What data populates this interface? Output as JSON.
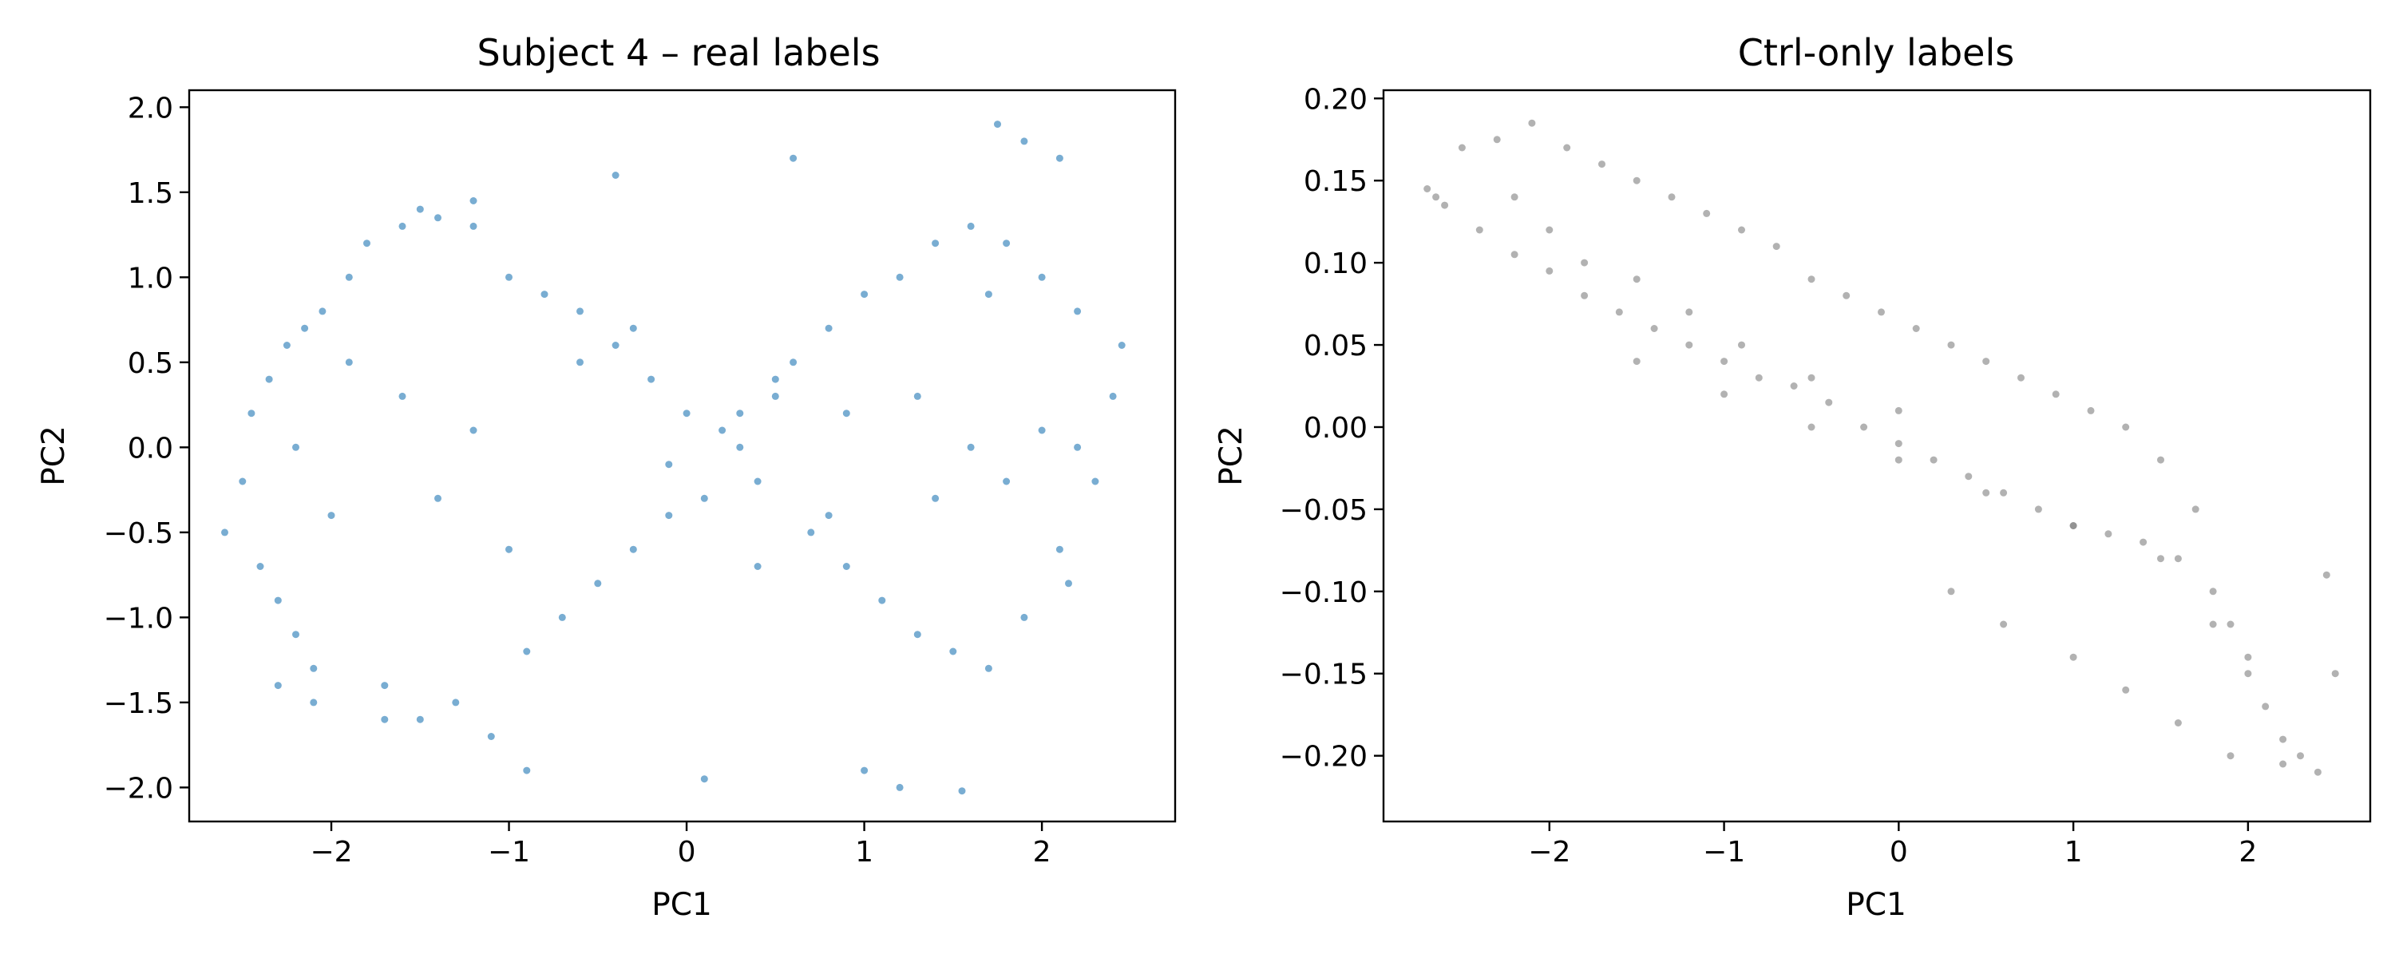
{
  "chart_data": [
    {
      "type": "scatter",
      "title": "Subject 4 – real labels",
      "xlabel": "PC1",
      "ylabel": "PC2",
      "xlim": [
        -2.8,
        2.75
      ],
      "ylim": [
        -2.2,
        2.1
      ],
      "xticks": [
        -2,
        -1,
        0,
        1,
        2
      ],
      "yticks": [
        -2.0,
        -1.5,
        -1.0,
        -0.5,
        0.0,
        0.5,
        1.0,
        1.5,
        2.0
      ],
      "xtick_labels": [
        "−2",
        "−1",
        "0",
        "1",
        "2"
      ],
      "ytick_labels": [
        "−2.0",
        "−1.5",
        "−1.0",
        "−0.5",
        "0.0",
        "0.5",
        "1.0",
        "1.5",
        "2.0"
      ],
      "grid": false,
      "marker_color": "#1f77b4",
      "marker_opacity": 0.6,
      "series": [
        {
          "x": [
            -2.6,
            -2.5,
            -2.45,
            -2.4,
            -2.35,
            -2.3,
            -2.25,
            -2.2,
            -2.15,
            -2.1,
            -2.05,
            -2.0,
            -1.9,
            -1.8,
            -1.7,
            -1.6,
            -1.5,
            -1.4,
            -1.3,
            -1.2,
            -1.1,
            -1.0,
            -0.9,
            -0.8,
            -0.7,
            -0.6,
            -0.5,
            -0.4,
            -0.3,
            -0.2,
            -0.1,
            0.0,
            0.1,
            0.2,
            0.3,
            0.4,
            0.5,
            0.6,
            0.7,
            0.8,
            0.9,
            1.0,
            1.1,
            1.2,
            1.3,
            1.4,
            1.5,
            1.6,
            1.7,
            1.8,
            1.9,
            2.0,
            2.1,
            2.2,
            2.3,
            2.4,
            2.45,
            -2.3,
            -2.1,
            -1.7,
            -1.5,
            -1.2,
            -0.9,
            -0.4,
            0.1,
            0.6,
            1.0,
            1.2,
            1.55,
            1.75,
            1.9,
            2.1,
            -1.6,
            -1.4,
            -1.2,
            -0.6,
            -0.1,
            0.3,
            0.5,
            0.8,
            1.3,
            1.6,
            1.8,
            2.0,
            2.2,
            -2.2,
            -1.9,
            -1.0,
            -0.3,
            0.4,
            0.9,
            1.4,
            1.7,
            2.15
          ],
          "y": [
            -0.5,
            -0.2,
            0.2,
            -0.7,
            0.4,
            -0.9,
            0.6,
            -1.1,
            0.7,
            -1.3,
            0.8,
            -0.4,
            1.0,
            1.2,
            -1.4,
            1.3,
            -1.6,
            1.35,
            -1.5,
            1.3,
            -1.7,
            1.0,
            -1.2,
            0.9,
            -1.0,
            0.8,
            -0.8,
            0.6,
            -0.6,
            0.4,
            -0.4,
            0.2,
            -0.3,
            0.1,
            0.0,
            -0.2,
            0.3,
            0.5,
            -0.5,
            0.7,
            -0.7,
            0.9,
            -0.9,
            1.0,
            -1.1,
            1.2,
            -1.2,
            1.3,
            -1.3,
            1.2,
            -1.0,
            1.0,
            -0.6,
            0.8,
            -0.2,
            0.3,
            0.6,
            -1.4,
            -1.5,
            -1.6,
            1.4,
            1.45,
            -1.9,
            1.6,
            -1.95,
            1.7,
            -1.9,
            -2.0,
            -2.02,
            1.9,
            1.8,
            1.7,
            0.3,
            -0.3,
            0.1,
            0.5,
            -0.1,
            0.2,
            0.4,
            -0.4,
            0.3,
            0.0,
            -0.2,
            0.1,
            0.0,
            0.0,
            0.5,
            -0.6,
            0.7,
            -0.7,
            0.2,
            -0.3,
            0.9,
            -0.8
          ]
        }
      ]
    },
    {
      "type": "scatter",
      "title": "Ctrl-only labels",
      "xlabel": "PC1",
      "ylabel": "PC2",
      "xlim": [
        -2.95,
        2.7
      ],
      "ylim": [
        -0.24,
        0.205
      ],
      "xticks": [
        -2,
        -1,
        0,
        1,
        2
      ],
      "yticks": [
        -0.2,
        -0.15,
        -0.1,
        -0.05,
        0.0,
        0.05,
        0.1,
        0.15,
        0.2
      ],
      "xtick_labels": [
        "−2",
        "−1",
        "0",
        "1",
        "2"
      ],
      "ytick_labels": [
        "−0.20",
        "−0.15",
        "−0.10",
        "−0.05",
        "0.00",
        "0.05",
        "0.10",
        "0.15",
        "0.20"
      ],
      "grid": false,
      "marker_color": "#7f7f7f",
      "marker_opacity": 0.6,
      "series": [
        {
          "x": [
            -2.7,
            -2.65,
            -2.6,
            -2.5,
            -2.4,
            -2.3,
            -2.2,
            -2.1,
            -2.0,
            -1.9,
            -1.8,
            -1.7,
            -1.6,
            -1.5,
            -1.4,
            -1.3,
            -1.2,
            -1.1,
            -1.0,
            -0.9,
            -0.8,
            -0.7,
            -0.6,
            -0.5,
            -0.4,
            -0.3,
            -0.2,
            -0.1,
            0.0,
            0.1,
            0.2,
            0.3,
            0.4,
            0.5,
            0.6,
            0.7,
            0.8,
            0.9,
            1.0,
            1.1,
            1.2,
            1.3,
            1.4,
            1.5,
            1.6,
            1.7,
            1.8,
            1.9,
            2.0,
            2.1,
            2.2,
            2.3,
            2.4,
            2.5,
            -2.2,
            -2.0,
            -1.8,
            -1.5,
            -1.2,
            -0.9,
            -0.5,
            0.0,
            0.3,
            0.6,
            1.0,
            1.3,
            1.6,
            1.9,
            2.2,
            2.45,
            -1.5,
            -1.0,
            -0.5,
            0.0,
            0.5,
            1.0,
            1.5,
            1.8,
            2.0
          ],
          "y": [
            0.145,
            0.14,
            0.135,
            0.17,
            0.12,
            0.175,
            0.105,
            0.185,
            0.095,
            0.17,
            0.08,
            0.16,
            0.07,
            0.15,
            0.06,
            0.14,
            0.05,
            0.13,
            0.04,
            0.12,
            0.03,
            0.11,
            0.025,
            0.09,
            0.015,
            0.08,
            0.0,
            0.07,
            -0.01,
            0.06,
            -0.02,
            0.05,
            -0.03,
            0.04,
            -0.04,
            0.03,
            -0.05,
            0.02,
            -0.06,
            0.01,
            -0.065,
            0.0,
            -0.07,
            -0.02,
            -0.08,
            -0.05,
            -0.1,
            -0.12,
            -0.14,
            -0.17,
            -0.19,
            -0.2,
            -0.21,
            -0.15,
            0.14,
            0.12,
            0.1,
            0.09,
            0.07,
            0.05,
            0.03,
            0.01,
            -0.1,
            -0.12,
            -0.14,
            -0.16,
            -0.18,
            -0.2,
            -0.205,
            -0.09,
            0.04,
            0.02,
            0.0,
            -0.02,
            -0.04,
            -0.06,
            -0.08,
            -0.12,
            -0.15
          ]
        }
      ]
    }
  ]
}
